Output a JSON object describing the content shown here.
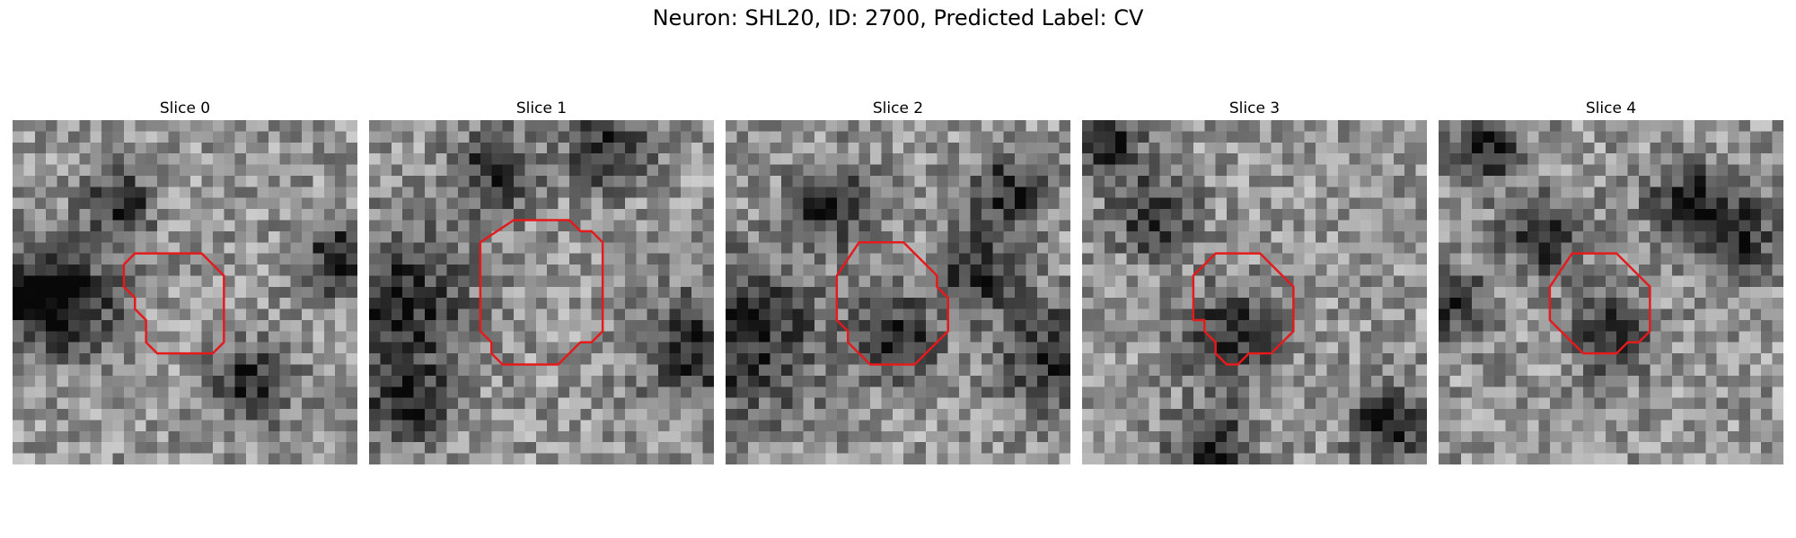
{
  "figure": {
    "title": "Neuron: SHL20, ID: 2700, Predicted Label: CV"
  },
  "colors": {
    "contour": "#e41a1c",
    "background": "#ffffff"
  },
  "panels": [
    {
      "title": "Slice 0",
      "seed": 11,
      "dark_spots": [
        [
          9,
          7,
          2.2
        ],
        [
          1,
          15,
          3
        ],
        [
          5,
          16,
          3
        ],
        [
          29,
          12,
          2.5
        ],
        [
          21,
          23,
          2.5
        ]
      ],
      "contour": [
        [
          11,
          12
        ],
        [
          17,
          12
        ],
        [
          19,
          14
        ],
        [
          19,
          20
        ],
        [
          18,
          21
        ],
        [
          13,
          21
        ],
        [
          12,
          20
        ],
        [
          12,
          18
        ],
        [
          11,
          17
        ],
        [
          11,
          16
        ],
        [
          10,
          15
        ],
        [
          10,
          13
        ]
      ]
    },
    {
      "title": "Slice 1",
      "seed": 23,
      "dark_spots": [
        [
          2,
          16,
          4.5
        ],
        [
          11,
          4,
          2.5
        ],
        [
          29,
          20,
          3.5
        ],
        [
          3,
          25,
          2.5
        ],
        [
          21,
          2,
          2.5
        ]
      ],
      "contour": [
        [
          13,
          9
        ],
        [
          18,
          9
        ],
        [
          19,
          10
        ],
        [
          20,
          10
        ],
        [
          21,
          11
        ],
        [
          21,
          19
        ],
        [
          20,
          20
        ],
        [
          19,
          20
        ],
        [
          18,
          21
        ],
        [
          17,
          22
        ],
        [
          12,
          22
        ],
        [
          11,
          21
        ],
        [
          11,
          20
        ],
        [
          10,
          19
        ],
        [
          10,
          11
        ]
      ]
    },
    {
      "title": "Slice 2",
      "seed": 37,
      "dark_spots": [
        [
          1,
          19,
          5
        ],
        [
          9,
          7,
          2.5
        ],
        [
          25,
          6,
          2.5
        ],
        [
          29,
          21,
          3.5
        ],
        [
          15,
          19,
          2.5
        ],
        [
          22,
          13,
          2.5
        ]
      ],
      "contour": [
        [
          12,
          11
        ],
        [
          16,
          11
        ],
        [
          19,
          14
        ],
        [
          19,
          15
        ],
        [
          20,
          16
        ],
        [
          20,
          19
        ],
        [
          17,
          22
        ],
        [
          13,
          22
        ],
        [
          11,
          20
        ],
        [
          11,
          19
        ],
        [
          10,
          18
        ],
        [
          10,
          14
        ]
      ]
    },
    {
      "title": "Slice 3",
      "seed": 53,
      "dark_spots": [
        [
          13,
          19,
          3
        ],
        [
          11,
          29,
          2.5
        ],
        [
          6,
          8,
          2.5
        ],
        [
          27,
          27,
          2.5
        ],
        [
          2,
          2,
          2
        ]
      ],
      "contour": [
        [
          12,
          12
        ],
        [
          16,
          12
        ],
        [
          19,
          15
        ],
        [
          19,
          19
        ],
        [
          18,
          20
        ],
        [
          17,
          21
        ],
        [
          15,
          21
        ],
        [
          14,
          22
        ],
        [
          13,
          22
        ],
        [
          12,
          21
        ],
        [
          12,
          20
        ],
        [
          11,
          19
        ],
        [
          11,
          18
        ],
        [
          10,
          18
        ],
        [
          10,
          14
        ]
      ]
    },
    {
      "title": "Slice 4",
      "seed": 71,
      "dark_spots": [
        [
          4,
          2,
          2.2
        ],
        [
          26,
          10,
          2.5
        ],
        [
          9,
          10,
          2.5
        ],
        [
          22,
          7,
          2.5
        ],
        [
          15,
          19,
          2.5
        ],
        [
          1,
          16,
          2
        ]
      ],
      "contour": [
        [
          12,
          12
        ],
        [
          16,
          12
        ],
        [
          19,
          15
        ],
        [
          19,
          19
        ],
        [
          18,
          20
        ],
        [
          17,
          20
        ],
        [
          16,
          21
        ],
        [
          13,
          21
        ],
        [
          10,
          18
        ],
        [
          10,
          15
        ]
      ]
    }
  ]
}
